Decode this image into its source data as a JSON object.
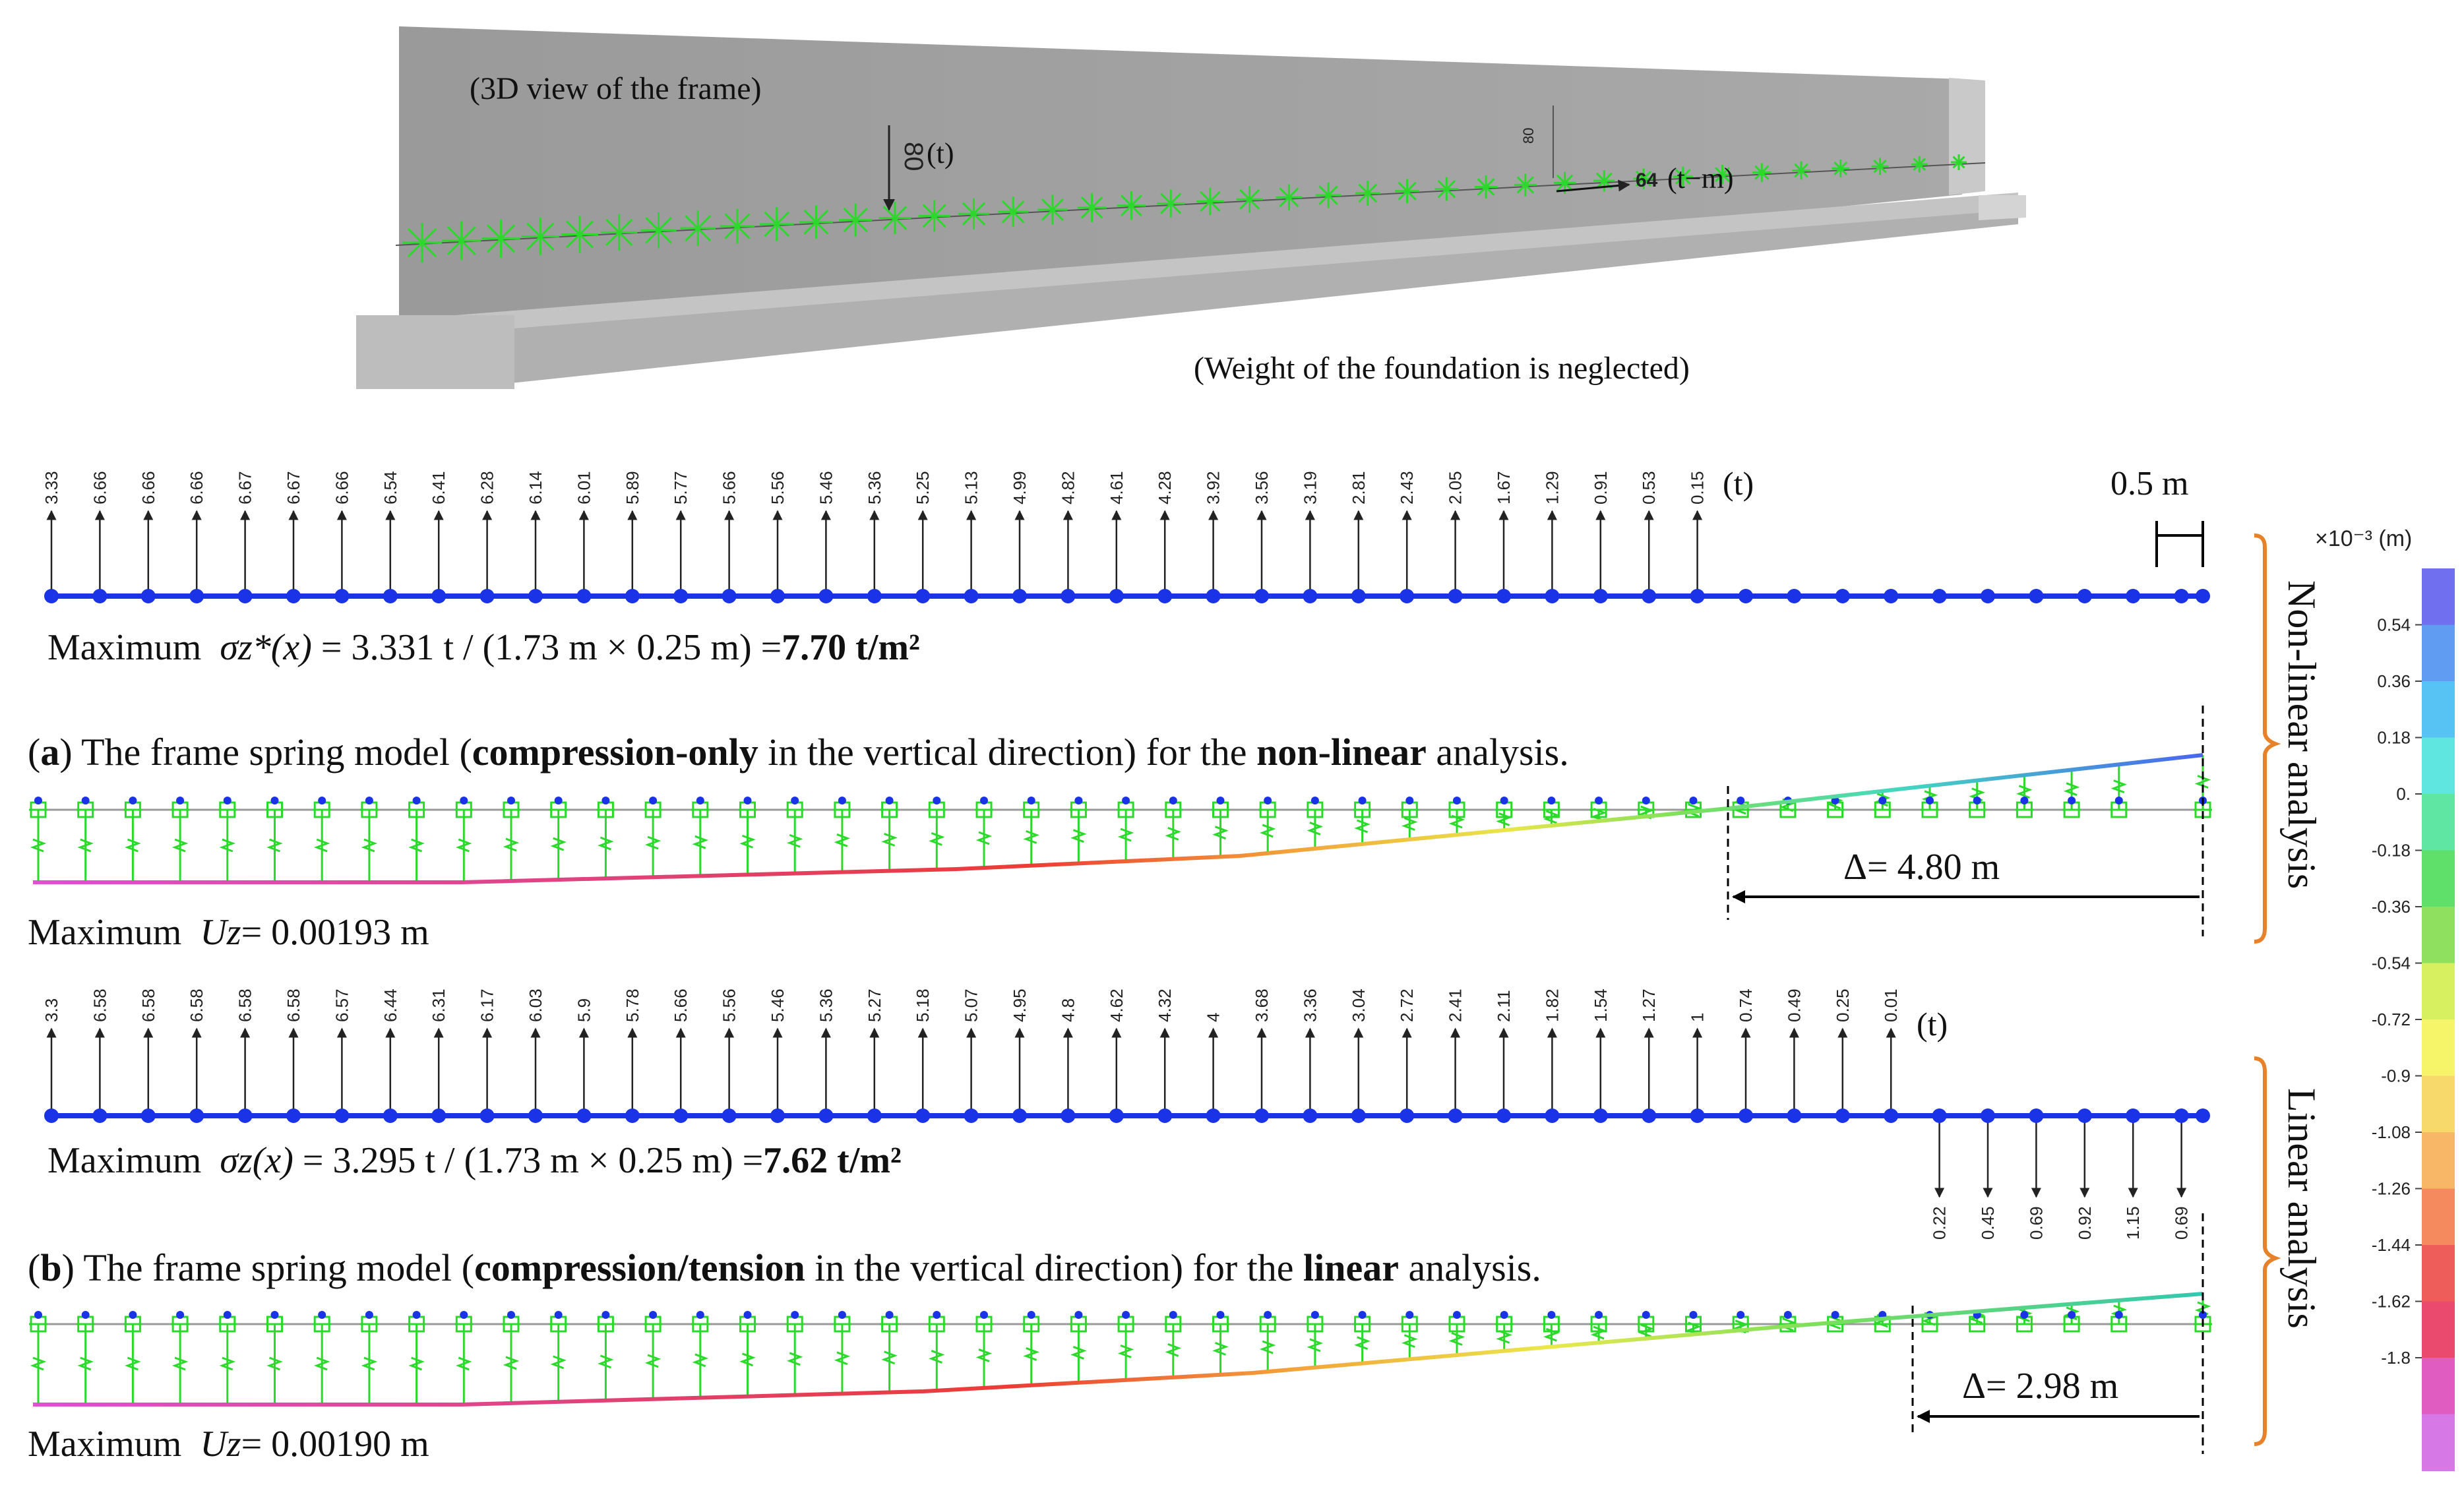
{
  "view3d": {
    "title": "(3D view of the frame)",
    "load_vertical_value": "80",
    "load_vertical_unit": "(t)",
    "load_vertical_value2": "80",
    "load_moment_value": "64",
    "load_moment_unit": "(t−m)",
    "foundation_note": "(Weight of the foundation is neglected)"
  },
  "scale": {
    "label": "0.5 m"
  },
  "panel_a": {
    "reactions": [
      "3.33",
      "6.66",
      "6.66",
      "6.66",
      "6.67",
      "6.67",
      "6.66",
      "6.54",
      "6.41",
      "6.28",
      "6.14",
      "6.01",
      "5.89",
      "5.77",
      "5.66",
      "5.56",
      "5.46",
      "5.36",
      "5.25",
      "5.13",
      "4.99",
      "4.82",
      "4.61",
      "4.28",
      "3.92",
      "3.56",
      "3.19",
      "2.81",
      "2.43",
      "2.05",
      "1.67",
      "1.29",
      "0.91",
      "0.53",
      "0.15"
    ],
    "unit": "(t)",
    "stress_prefix": "Maximum",
    "stress_symbol": "σz*(x)",
    "stress_expr": "= 3.331 t / (1.73 m × 0.25 m) =",
    "stress_value": "7.70 t/m²",
    "caption_parts": [
      "(",
      "a",
      ") The frame spring model (",
      "compression-only",
      " in the vertical direction) for the ",
      "non-linear",
      " analysis."
    ],
    "delta": "Δ= 4.80 m",
    "uz_prefix": "Maximum",
    "uz_symbol": "Uz",
    "uz_value": "= 0.00193 m",
    "side_label": "Non-linear analysis"
  },
  "panel_b": {
    "reactions_up": [
      "3.3",
      "6.58",
      "6.58",
      "6.58",
      "6.58",
      "6.58",
      "6.57",
      "6.44",
      "6.31",
      "6.17",
      "6.03",
      "5.9",
      "5.78",
      "5.66",
      "5.56",
      "5.46",
      "5.36",
      "5.27",
      "5.18",
      "5.07",
      "4.95",
      "4.8",
      "4.62",
      "4.32",
      "4",
      "3.68",
      "3.36",
      "3.04",
      "2.72",
      "2.41",
      "2.11",
      "1.82",
      "1.54",
      "1.27",
      "1",
      "0.74",
      "0.49",
      "0.25",
      "0.01"
    ],
    "reactions_down": [
      "0.22",
      "0.45",
      "0.69",
      "0.92",
      "1.15",
      "0.69"
    ],
    "unit": "(t)",
    "stress_prefix": "Maximum",
    "stress_symbol": "σz(x)",
    "stress_expr": "= 3.295 t / (1.73 m × 0.25 m) =",
    "stress_value": "7.62 t/m²",
    "caption_parts": [
      "(",
      "b",
      ") The frame spring model (",
      "compression/tension",
      " in the vertical direction) for the ",
      "linear",
      " analysis."
    ],
    "delta": "Δ= 2.98 m",
    "uz_prefix": "Maximum",
    "uz_symbol": "Uz",
    "uz_value": "= 0.00190 m",
    "side_label": "Linear analysis"
  },
  "colorbar": {
    "header": "×10⁻³ (m)",
    "ticks": [
      "0.54",
      "0.36",
      "0.18",
      "0.",
      "-0.18",
      "-0.36",
      "-0.54",
      "-0.72",
      "-0.9",
      "-1.08",
      "-1.26",
      "-1.44",
      "-1.62",
      "-1.8"
    ],
    "colors": [
      "#6f6ff0",
      "#5f9cf2",
      "#56c3f4",
      "#5fe6e0",
      "#5ee6a2",
      "#5fe06b",
      "#8ee05e",
      "#d7f060",
      "#f6f56a",
      "#f7d86a",
      "#f8b766",
      "#f48a5e",
      "#ee5d5a",
      "#e94a6e",
      "#e15cc0",
      "#d678e6"
    ]
  },
  "colors": {
    "beam": "#1a33e6",
    "spring": "#2bd92b",
    "axis": "#999999",
    "bracket": "#e8822a"
  }
}
